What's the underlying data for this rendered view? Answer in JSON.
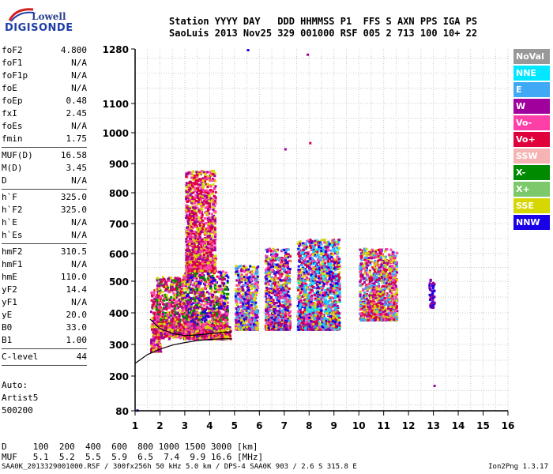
{
  "logo": {
    "line1": "Lowell",
    "line2": "DIGISONDE"
  },
  "header": {
    "line1": "Station YYYY DAY   DDD HHMMSS P1  FFS S AXN PPS IGA PS",
    "line2": "SaoLuis 2013 Nov25 329 001000 RSF 005 2 713 100 10+ 22"
  },
  "params": [
    {
      "k": "foF2",
      "v": "4.800"
    },
    {
      "k": "foF1",
      "v": "N/A"
    },
    {
      "k": "foF1p",
      "v": "N/A"
    },
    {
      "k": "foE",
      "v": "N/A"
    },
    {
      "k": "foEp",
      "v": "0.48"
    },
    {
      "k": "fxI",
      "v": "2.45"
    },
    {
      "k": "foEs",
      "v": "N/A"
    },
    {
      "k": "fmin",
      "v": "1.75"
    },
    {
      "k": "MUF(D)",
      "v": "16.58"
    },
    {
      "k": "M(D)",
      "v": "3.45"
    },
    {
      "k": "D",
      "v": "N/A"
    },
    {
      "k": "h`F",
      "v": "325.0"
    },
    {
      "k": "h`F2",
      "v": "325.0"
    },
    {
      "k": "h`E",
      "v": "N/A"
    },
    {
      "k": "h`Es",
      "v": "N/A"
    },
    {
      "k": "hmF2",
      "v": "310.5"
    },
    {
      "k": "hmF1",
      "v": "N/A"
    },
    {
      "k": "hmE",
      "v": "110.0"
    },
    {
      "k": "yF2",
      "v": "14.4"
    },
    {
      "k": "yF1",
      "v": "N/A"
    },
    {
      "k": "yE",
      "v": "20.0"
    },
    {
      "k": "B0",
      "v": "33.0"
    },
    {
      "k": "B1",
      "v": "1.00"
    },
    {
      "k": "C-level",
      "v": "44"
    }
  ],
  "auto": {
    "l1": "Auto:",
    "l2": "Artist5",
    "l3": "500200"
  },
  "bottom": {
    "d_line": "D     100  200  400  600  800 1000 1500 3000 [km]",
    "muf_line": "MUF   5.1  5.2  5.5  5.9  6.5  7.4  9.9 16.6 [MHz]"
  },
  "footer": {
    "left": "SAA0K_2013329001000.RSF / 300fx256h 50 kHz 5.0 km / DPS-4 SAA0K 903 / 2.6 S 315.8 E",
    "right": "Ion2Png 1.3.17"
  },
  "legend": [
    {
      "label": "NoVal",
      "color": "#999999"
    },
    {
      "label": "NNE",
      "color": "#00e8ff"
    },
    {
      "label": "E",
      "color": "#3fa9f5"
    },
    {
      "label": "W",
      "color": "#a0009c"
    },
    {
      "label": "Vo-",
      "color": "#ff3fa8"
    },
    {
      "label": "Vo+",
      "color": "#e0003c"
    },
    {
      "label": "SSW",
      "color": "#f5b3b3"
    },
    {
      "label": "X-",
      "color": "#008a00"
    },
    {
      "label": "X+",
      "color": "#7bc96b"
    },
    {
      "label": "SSE",
      "color": "#d6d600"
    },
    {
      "label": "NNW",
      "color": "#1a00e6"
    }
  ],
  "chart_data": {
    "type": "scatter",
    "xlabel": "",
    "ylabel": "",
    "x_ticks": [
      1,
      2,
      3,
      4,
      5,
      6,
      7,
      8,
      9,
      10,
      11,
      12,
      13,
      14,
      15,
      16
    ],
    "y_ticks": [
      80,
      200,
      300,
      400,
      500,
      600,
      700,
      800,
      900,
      1000,
      1100,
      1280
    ],
    "xlim": [
      1,
      16
    ],
    "ylim": [
      80,
      1280
    ],
    "grid": true,
    "legend_position": "right",
    "clusters": [
      {
        "x0": 1.6,
        "x1": 2.0,
        "y0": 280,
        "y1": 480,
        "colors": [
          "#e0003c",
          "#a0009c",
          "#ff3fa8",
          "#d6d600"
        ]
      },
      {
        "x0": 1.8,
        "x1": 2.9,
        "y0": 330,
        "y1": 520,
        "colors": [
          "#a0009c",
          "#ff3fa8",
          "#e0003c",
          "#d6d600",
          "#008a00"
        ]
      },
      {
        "x0": 2.9,
        "x1": 4.7,
        "y0": 320,
        "y1": 540,
        "colors": [
          "#a0009c",
          "#ff3fa8",
          "#e0003c",
          "#d6d600",
          "#1a00e6",
          "#008a00"
        ]
      },
      {
        "x0": 3.0,
        "x1": 4.2,
        "y0": 540,
        "y1": 880,
        "colors": [
          "#a0009c",
          "#ff3fa8",
          "#d6d600",
          "#e0003c"
        ]
      },
      {
        "x0": 5.0,
        "x1": 5.9,
        "y0": 350,
        "y1": 560,
        "colors": [
          "#d6d600",
          "#3fa9f5",
          "#a0009c",
          "#ff3fa8",
          "#1a00e6"
        ]
      },
      {
        "x0": 6.2,
        "x1": 7.2,
        "y0": 350,
        "y1": 620,
        "colors": [
          "#d6d600",
          "#3fa9f5",
          "#a0009c",
          "#ff3fa8",
          "#1a00e6",
          "#e0003c"
        ]
      },
      {
        "x0": 7.5,
        "x1": 9.2,
        "y0": 350,
        "y1": 650,
        "colors": [
          "#3fa9f5",
          "#00e8ff",
          "#d6d600",
          "#a0009c",
          "#1a00e6",
          "#ff3fa8",
          "#e0003c"
        ]
      },
      {
        "x0": 10.0,
        "x1": 11.5,
        "y0": 380,
        "y1": 620,
        "colors": [
          "#3fa9f5",
          "#a0009c",
          "#d6d600",
          "#ff3fa8",
          "#e0003c"
        ]
      },
      {
        "x0": 12.8,
        "x1": 13.0,
        "y0": 420,
        "y1": 510,
        "colors": [
          "#1a00e6",
          "#a0009c"
        ]
      }
    ],
    "trace_curve": [
      [
        1.0,
        240
      ],
      [
        1.5,
        268
      ],
      [
        2.0,
        285
      ],
      [
        2.5,
        298
      ],
      [
        3.0,
        306
      ],
      [
        3.5,
        312
      ],
      [
        4.0,
        316
      ],
      [
        4.5,
        318
      ],
      [
        4.9,
        318
      ]
    ],
    "trace_curve2": [
      [
        1.6,
        380
      ],
      [
        2.0,
        350
      ],
      [
        2.5,
        335
      ],
      [
        3.0,
        328
      ],
      [
        3.5,
        330
      ],
      [
        4.0,
        334
      ],
      [
        4.5,
        338
      ],
      [
        4.9,
        340
      ]
    ]
  }
}
